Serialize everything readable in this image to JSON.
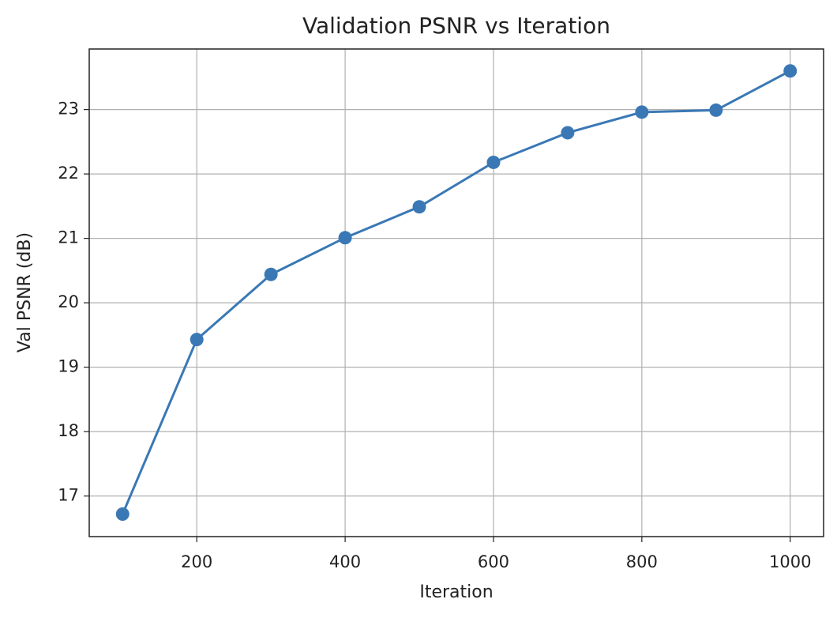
{
  "chart_data": {
    "type": "line",
    "title": "Validation PSNR vs Iteration",
    "x_label": "Iteration",
    "y_label": "Val PSNR (dB)",
    "x": [
      100,
      200,
      300,
      400,
      500,
      600,
      700,
      800,
      900,
      1000
    ],
    "series": [
      {
        "color": "#3a78b5",
        "values": [
          16.72,
          19.43,
          20.44,
          21.01,
          21.49,
          22.18,
          22.64,
          22.96,
          22.99,
          23.6
        ]
      }
    ],
    "xlim": [
      55,
      1045
    ],
    "xticks": [
      200,
      400,
      600,
      800,
      1000
    ],
    "ylim": [
      16.37,
      23.94
    ],
    "yticks": [
      17,
      18,
      19,
      20,
      21,
      22,
      23
    ],
    "grid": true,
    "markers": true
  }
}
